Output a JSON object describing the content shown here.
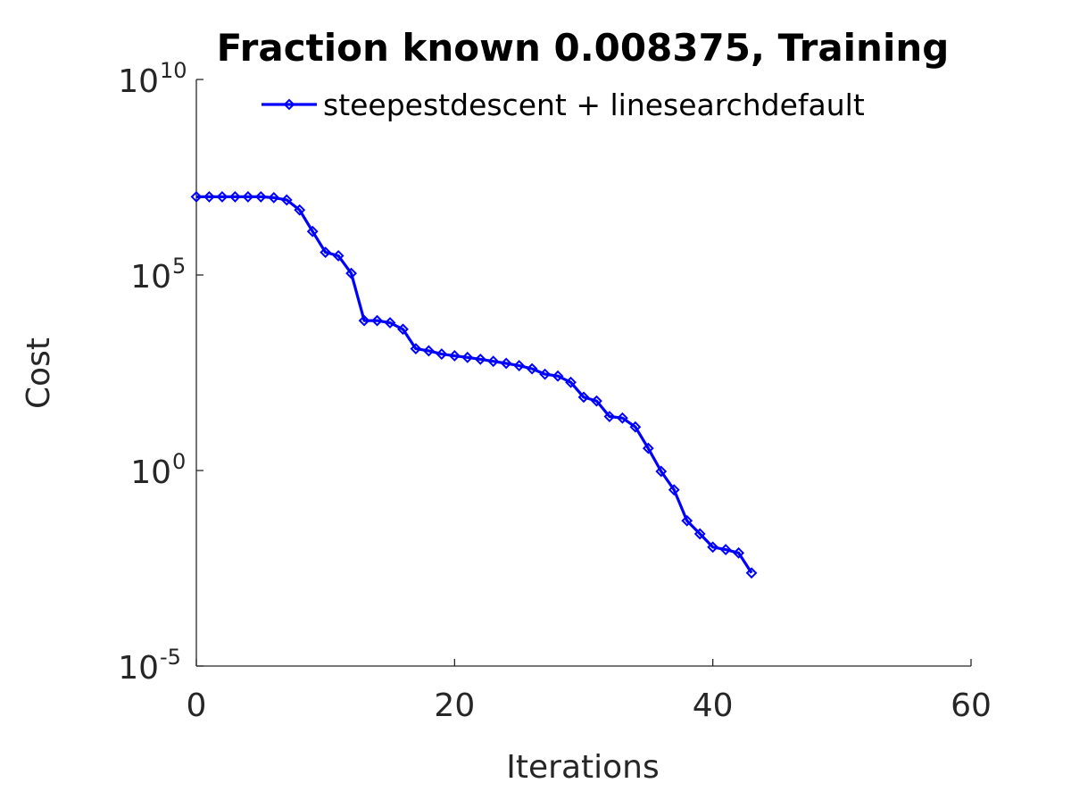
{
  "chart_data": {
    "type": "line",
    "title": "Fraction known 0.008375, Training",
    "xlabel": "Iterations",
    "ylabel": "Cost",
    "xlim": [
      0,
      60
    ],
    "ylim_log10": [
      -5,
      10
    ],
    "yscale": "log",
    "grid": false,
    "legend_position": "top-right",
    "x_ticks": [
      {
        "value": 0,
        "label": "0"
      },
      {
        "value": 20,
        "label": "20"
      },
      {
        "value": 40,
        "label": "40"
      },
      {
        "value": 60,
        "label": "60"
      }
    ],
    "y_ticks": [
      {
        "exp": -5,
        "base": "10",
        "sup": "-5"
      },
      {
        "exp": 0,
        "base": "10",
        "sup": "0"
      },
      {
        "exp": 5,
        "base": "10",
        "sup": "5"
      },
      {
        "exp": 10,
        "base": "10",
        "sup": "10"
      }
    ],
    "series": [
      {
        "name": "steepestdescent + linesearchdefault",
        "color": "#0000ff",
        "marker": "diamond",
        "x": [
          0,
          1,
          2,
          3,
          4,
          5,
          6,
          7,
          8,
          9,
          10,
          11,
          12,
          13,
          14,
          15,
          16,
          17,
          18,
          19,
          20,
          21,
          22,
          23,
          24,
          25,
          26,
          27,
          28,
          29,
          30,
          31,
          32,
          33,
          34,
          35,
          36,
          37,
          38,
          39,
          40,
          41,
          42,
          43
        ],
        "y": [
          10000000,
          10000000,
          10000000,
          10000000,
          10000000,
          10000000,
          9500000,
          8300000,
          4600000,
          1300000,
          380000,
          310000,
          110000,
          6800,
          6800,
          6000,
          4100,
          1300,
          1150,
          950,
          860,
          780,
          700,
          620,
          550,
          480,
          400,
          290,
          260,
          180,
          75,
          60,
          24,
          22,
          13,
          3.7,
          0.95,
          0.32,
          0.052,
          0.024,
          0.011,
          0.0095,
          0.0078,
          0.0024
        ]
      }
    ]
  }
}
